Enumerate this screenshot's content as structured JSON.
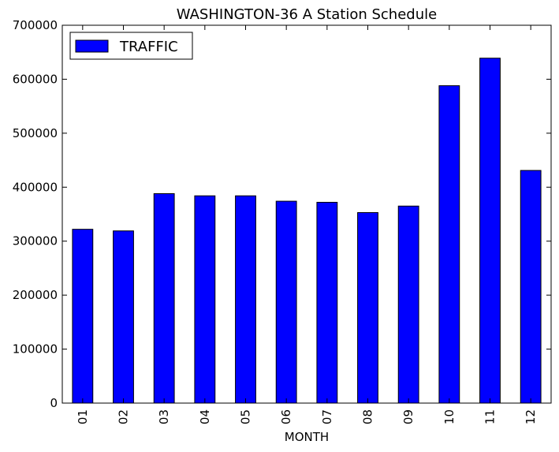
{
  "chart_data": {
    "type": "bar",
    "title": "WASHINGTON-36 A Station Schedule",
    "xlabel": "MONTH",
    "ylabel": "",
    "categories": [
      "01",
      "02",
      "03",
      "04",
      "05",
      "06",
      "07",
      "08",
      "09",
      "10",
      "11",
      "12"
    ],
    "series": [
      {
        "name": "TRAFFIC",
        "color": "#0000ff",
        "values": [
          322000,
          319000,
          388000,
          384000,
          384000,
          374000,
          372000,
          353000,
          365000,
          588000,
          639000,
          431000
        ]
      }
    ],
    "ylim": [
      0,
      700000
    ],
    "yticks": [
      0,
      100000,
      200000,
      300000,
      400000,
      500000,
      600000,
      700000
    ],
    "ytick_labels": [
      "0",
      "100000",
      "200000",
      "300000",
      "400000",
      "500000",
      "600000",
      "700000"
    ],
    "grid": false,
    "legend_position": "top-left"
  }
}
